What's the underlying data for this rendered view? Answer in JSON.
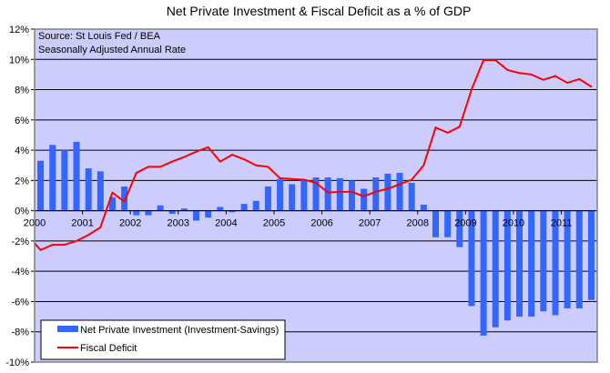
{
  "chart_data": {
    "type": "bar+line",
    "title": "Net Private Investment & Fiscal Deficit as a % of GDP",
    "annotations": [
      "Source: St Louis Fed / BEA",
      "Seasonally Adjusted Annual Rate"
    ],
    "xlabel": "",
    "ylabel": "",
    "ylim": [
      -10,
      12
    ],
    "y_ticks": [
      12,
      10,
      8,
      6,
      4,
      2,
      0,
      -2,
      -4,
      -6,
      -8,
      -10
    ],
    "y_tick_labels": [
      "12%",
      "10%",
      "8%",
      "6%",
      "4%",
      "2%",
      "0%",
      "-2%",
      "-4%",
      "-6%",
      "-8%",
      "-10%"
    ],
    "x_tick_labels": [
      "2000",
      "2001",
      "2002",
      "2003",
      "2004",
      "2005",
      "2006",
      "2007",
      "2008",
      "2009",
      "2010",
      "2011"
    ],
    "grid": true,
    "legend_position": "bottom-left",
    "colors": {
      "plot_bg": "#CCCCFF",
      "bar": "#3366FF",
      "line": "#FF0000",
      "grid": "#000000",
      "border": "#808080"
    },
    "categories": [
      "2000Q1",
      "2000Q2",
      "2000Q3",
      "2000Q4",
      "2001Q1",
      "2001Q2",
      "2001Q3",
      "2001Q4",
      "2002Q1",
      "2002Q2",
      "2002Q3",
      "2002Q4",
      "2003Q1",
      "2003Q2",
      "2003Q3",
      "2003Q4",
      "2004Q1",
      "2004Q2",
      "2004Q3",
      "2004Q4",
      "2005Q1",
      "2005Q2",
      "2005Q3",
      "2005Q4",
      "2006Q1",
      "2006Q2",
      "2006Q3",
      "2006Q4",
      "2007Q1",
      "2007Q2",
      "2007Q3",
      "2007Q4",
      "2008Q1",
      "2008Q2",
      "2008Q3",
      "2008Q4",
      "2009Q1",
      "2009Q2",
      "2009Q3",
      "2009Q4",
      "2010Q1",
      "2010Q2",
      "2010Q3",
      "2010Q4",
      "2011Q1",
      "2011Q2",
      "2011Q3"
    ],
    "series": [
      {
        "name": "Net Private Investment (Investment-Savings)",
        "type": "bar",
        "values": [
          3.3,
          4.35,
          4.0,
          4.55,
          2.8,
          2.6,
          0.9,
          1.6,
          -0.3,
          -0.3,
          0.35,
          -0.2,
          0.15,
          -0.65,
          -0.45,
          0.25,
          -0.1,
          0.45,
          0.65,
          1.6,
          2.1,
          1.75,
          2.05,
          2.2,
          2.2,
          2.15,
          2.0,
          1.45,
          2.2,
          2.45,
          2.5,
          1.85,
          0.4,
          -1.75,
          -1.75,
          -2.4,
          -6.3,
          -8.25,
          -7.7,
          -7.25,
          -7.0,
          -7.0,
          -6.65,
          -6.9,
          -6.45,
          -6.45,
          -5.9
        ]
      },
      {
        "name": "Fiscal Deficit",
        "type": "line",
        "start_value": -2.15,
        "values": [
          -2.6,
          -2.25,
          -2.25,
          -2.0,
          -1.6,
          -1.1,
          1.2,
          0.6,
          2.5,
          2.9,
          2.9,
          3.25,
          3.55,
          3.9,
          4.2,
          3.25,
          3.7,
          3.4,
          3.0,
          2.9,
          2.15,
          2.1,
          2.05,
          1.85,
          1.2,
          1.25,
          1.25,
          0.95,
          1.25,
          1.45,
          1.75,
          2.05,
          3.0,
          5.5,
          5.15,
          5.55,
          8.0,
          9.95,
          9.95,
          9.3,
          9.1,
          9.0,
          8.65,
          8.9,
          8.45,
          8.7,
          8.2
        ]
      }
    ]
  }
}
